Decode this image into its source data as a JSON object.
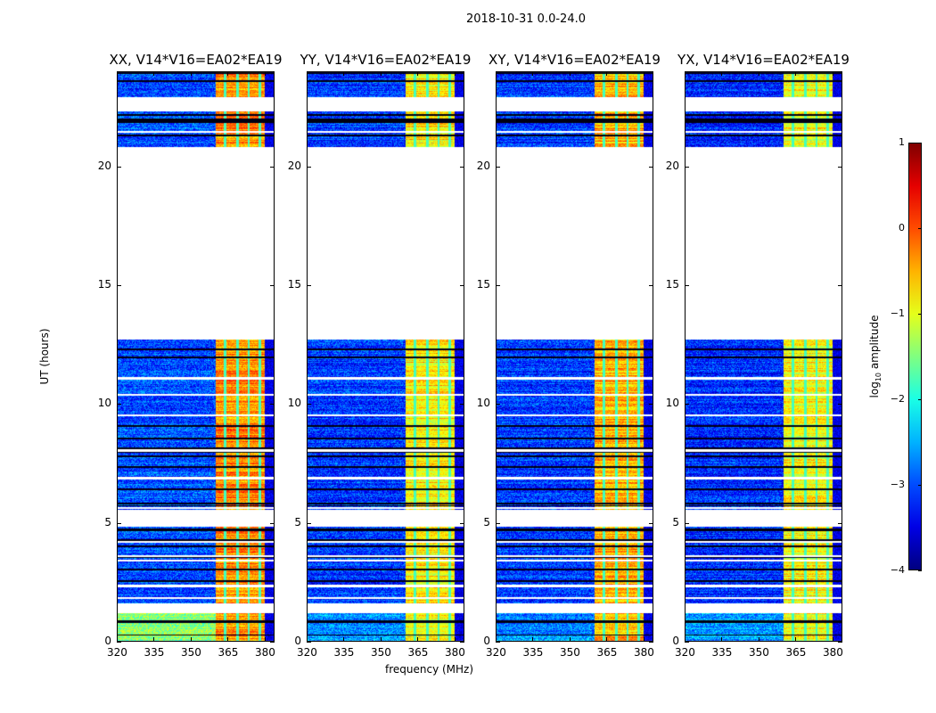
{
  "suptitle": "2018-10-31 0.0-24.0",
  "chart_data": [
    {
      "type": "heatmap",
      "title": "XX, V14*V16=EA02*EA19",
      "band_level": -0.3,
      "bg_level": -3.0,
      "low_seg_level": -1.4
    },
    {
      "type": "heatmap",
      "title": "YY, V14*V16=EA02*EA19",
      "band_level": -0.8,
      "bg_level": -3.1,
      "low_seg_level": -2.6
    },
    {
      "type": "heatmap",
      "title": "XY, V14*V16=EA02*EA19",
      "band_level": -0.5,
      "bg_level": -3.1,
      "low_seg_level": -2.7
    },
    {
      "type": "heatmap",
      "title": "YX, V14*V16=EA02*EA19",
      "band_level": -0.9,
      "bg_level": -3.2,
      "low_seg_level": -2.6
    }
  ],
  "axes": {
    "xlabel": "frequency (MHz)",
    "ylabel": "UT (hours)",
    "xlim": [
      320,
      384
    ],
    "ylim": [
      0,
      24
    ],
    "xticks": [
      "320",
      "335",
      "350",
      "365",
      "380"
    ],
    "yticks": [
      "0",
      "5",
      "10",
      "15",
      "20"
    ],
    "time_segments_with_data": [
      [
        0.05,
        1.2
      ],
      [
        1.6,
        4.85
      ],
      [
        5.55,
        12.7
      ],
      [
        20.8,
        22.3
      ],
      [
        22.9,
        24
      ]
    ],
    "bright_band_MHz": [
      360,
      380
    ],
    "band_gaps_MHz": [
      364,
      369,
      373.5,
      378
    ]
  },
  "colorbar": {
    "label": "log10 amplitude",
    "label_main": "log",
    "label_sub": "10",
    "label_rest": " amplitude",
    "range": [
      -4,
      1
    ],
    "ticks": [
      "1",
      "0",
      "−1",
      "−2",
      "−3",
      "−4"
    ],
    "colormap": "jet"
  }
}
